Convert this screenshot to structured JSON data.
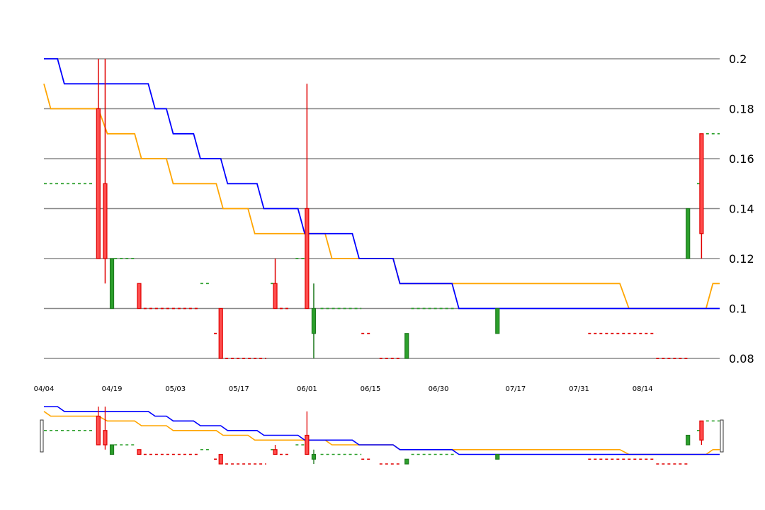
{
  "chart_data": {
    "type": "candlestick",
    "x_unit": "day-index from first plotted date",
    "ylim": [
      0.08,
      0.2
    ],
    "y_ticks": [
      "0.2",
      "0.18",
      "0.16",
      "0.14",
      "0.12",
      "0.1",
      "0.08"
    ],
    "y_tick_values": [
      0.2,
      0.18,
      0.16,
      0.14,
      0.12,
      0.1,
      0.08
    ],
    "x_ticks": [
      "04/04",
      "04/19",
      "05/03",
      "05/17",
      "06/01",
      "06/15",
      "06/30",
      "07/17",
      "07/31",
      "08/14"
    ],
    "x_tick_days": [
      0,
      15,
      29,
      43,
      58,
      72,
      87,
      104,
      118,
      132
    ],
    "x_range_days": [
      0,
      149
    ],
    "grid": true,
    "colors": {
      "up": "#2ca02c",
      "up_edge": "#1f7a1f",
      "down": "#ff4d4d",
      "down_edge": "#e00000",
      "ma_fast": "#0000ff",
      "ma_slow": "#ffa500",
      "grid": "#888888"
    },
    "candles": [
      {
        "day": 12,
        "open": 0.18,
        "close": 0.12,
        "high": 0.2,
        "low": 0.12
      },
      {
        "day": 13.5,
        "open": 0.15,
        "close": 0.12,
        "high": 0.2,
        "low": 0.11
      },
      {
        "day": 15,
        "open": 0.1,
        "close": 0.12,
        "high": 0.12,
        "low": 0.1
      },
      {
        "day": 21,
        "open": 0.11,
        "close": 0.1,
        "high": 0.11,
        "low": 0.1
      },
      {
        "day": 39,
        "open": 0.1,
        "close": 0.08,
        "high": 0.1,
        "low": 0.08
      },
      {
        "day": 51,
        "open": 0.11,
        "close": 0.1,
        "high": 0.12,
        "low": 0.1
      },
      {
        "day": 58,
        "open": 0.14,
        "close": 0.1,
        "high": 0.19,
        "low": 0.1
      },
      {
        "day": 59.5,
        "open": 0.09,
        "close": 0.1,
        "high": 0.11,
        "low": 0.08
      },
      {
        "day": 80,
        "open": 0.08,
        "close": 0.09,
        "high": 0.09,
        "low": 0.08
      },
      {
        "day": 100,
        "open": 0.09,
        "close": 0.1,
        "high": 0.1,
        "low": 0.09
      },
      {
        "day": 142,
        "open": 0.12,
        "close": 0.14,
        "high": 0.14,
        "low": 0.12
      },
      {
        "day": 145,
        "open": 0.17,
        "close": 0.13,
        "high": 0.17,
        "low": 0.12
      }
    ],
    "dashes": [
      {
        "y": 0.15,
        "x0": 0,
        "x1": 11,
        "color": "up"
      },
      {
        "y": 0.12,
        "x0": 15.5,
        "x1": 20,
        "color": "up"
      },
      {
        "y": 0.1,
        "x0": 22,
        "x1": 34,
        "color": "down"
      },
      {
        "y": 0.11,
        "x0": 34.5,
        "x1": 37,
        "color": "up"
      },
      {
        "y": 0.09,
        "x0": 37.5,
        "x1": 38.5,
        "color": "down"
      },
      {
        "y": 0.08,
        "x0": 40,
        "x1": 49,
        "color": "down"
      },
      {
        "y": 0.11,
        "x0": 50,
        "x1": 50.6,
        "color": "up"
      },
      {
        "y": 0.1,
        "x0": 52,
        "x1": 54,
        "color": "down"
      },
      {
        "y": 0.12,
        "x0": 55.5,
        "x1": 58,
        "color": "up"
      },
      {
        "y": 0.1,
        "x0": 61,
        "x1": 70,
        "color": "up"
      },
      {
        "y": 0.09,
        "x0": 70,
        "x1": 72.5,
        "color": "down"
      },
      {
        "y": 0.08,
        "x0": 74,
        "x1": 79,
        "color": "down"
      },
      {
        "y": 0.1,
        "x0": 81,
        "x1": 91,
        "color": "up"
      },
      {
        "y": 0.09,
        "x0": 120,
        "x1": 135,
        "color": "down"
      },
      {
        "y": 0.08,
        "x0": 135,
        "x1": 142,
        "color": "down"
      },
      {
        "y": 0.15,
        "x0": 144,
        "x1": 144.6,
        "color": "up"
      },
      {
        "y": 0.17,
        "x0": 146,
        "x1": 149,
        "color": "up"
      }
    ],
    "ma_fast": [
      [
        0,
        0.2
      ],
      [
        3,
        0.2
      ],
      [
        4.5,
        0.19
      ],
      [
        23,
        0.19
      ],
      [
        24.5,
        0.18
      ],
      [
        27,
        0.18
      ],
      [
        28.5,
        0.17
      ],
      [
        33,
        0.17
      ],
      [
        34.5,
        0.16
      ],
      [
        39,
        0.16
      ],
      [
        40.5,
        0.15
      ],
      [
        47,
        0.15
      ],
      [
        48.5,
        0.14
      ],
      [
        56,
        0.14
      ],
      [
        57.5,
        0.13
      ],
      [
        68,
        0.13
      ],
      [
        69.5,
        0.12
      ],
      [
        77,
        0.12
      ],
      [
        78.5,
        0.11
      ],
      [
        90,
        0.11
      ],
      [
        91.5,
        0.1
      ],
      [
        149,
        0.1
      ]
    ],
    "ma_slow": [
      [
        0,
        0.19
      ],
      [
        1.5,
        0.18
      ],
      [
        12,
        0.18
      ],
      [
        14,
        0.17
      ],
      [
        20,
        0.17
      ],
      [
        21.5,
        0.16
      ],
      [
        27,
        0.16
      ],
      [
        28.5,
        0.15
      ],
      [
        38,
        0.15
      ],
      [
        39.5,
        0.14
      ],
      [
        45,
        0.14
      ],
      [
        46.5,
        0.13
      ],
      [
        62,
        0.13
      ],
      [
        63.5,
        0.12
      ],
      [
        77,
        0.12
      ],
      [
        78.5,
        0.11
      ],
      [
        127,
        0.11
      ],
      [
        129,
        0.1
      ],
      [
        146,
        0.1
      ],
      [
        147.5,
        0.11
      ],
      [
        149,
        0.11
      ]
    ]
  }
}
